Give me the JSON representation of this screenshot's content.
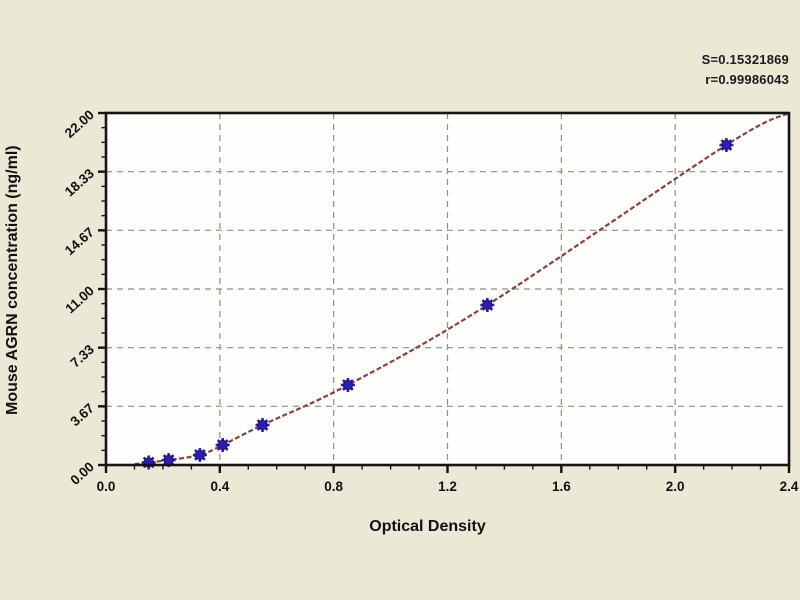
{
  "figure": {
    "background_color": "#ebe8d6",
    "plot_bg": "#fefefc",
    "border_color": "#151515",
    "grid_color": "#8f8f85",
    "curve_color": "#8e3f3a",
    "marker_color": "#2b1fb0",
    "marker_edge": "#1a1280",
    "stats": {
      "line1": "S=0.15321869",
      "line2": "r=0.99986043"
    }
  },
  "chart_data": {
    "type": "scatter",
    "title": "",
    "xlabel": "Optical Density",
    "ylabel": "Mouse AGRN concentration (ng/ml)",
    "xlim": [
      0.0,
      2.4
    ],
    "ylim": [
      0.0,
      22.0
    ],
    "grid": true,
    "legend": "none",
    "x_major_ticks": [
      0.0,
      0.4,
      0.8,
      1.2,
      1.6,
      2.0,
      2.4
    ],
    "x_tick_labels": [
      "0.0",
      "0.4",
      "0.8",
      "1.2",
      "1.6",
      "2.0",
      "2.4"
    ],
    "x_minor_step": 0.1,
    "y_major_count": 6,
    "y_tick_labels": [
      "0.00",
      "3.67",
      "7.33",
      "11.00",
      "14.67",
      "18.33",
      "22.00"
    ],
    "y_minor_divisions": 4,
    "series": [
      {
        "name": "standard-points",
        "type": "scatter",
        "marker": "asterisk",
        "x": [
          0.15,
          0.22,
          0.33,
          0.41,
          0.55,
          0.85,
          1.34,
          2.18
        ],
        "y": [
          0.16,
          0.31,
          0.63,
          1.25,
          2.5,
          5.0,
          10.0,
          20.0
        ]
      },
      {
        "name": "fitted-curve",
        "type": "line",
        "x": [
          0.1,
          0.15,
          0.22,
          0.33,
          0.41,
          0.55,
          0.85,
          1.34,
          2.18,
          2.4
        ],
        "y": [
          0.05,
          0.16,
          0.31,
          0.63,
          1.25,
          2.5,
          5.0,
          10.0,
          20.0,
          22.0
        ]
      }
    ],
    "annotations": [
      "S=0.15321869",
      "r=0.99986043"
    ]
  }
}
